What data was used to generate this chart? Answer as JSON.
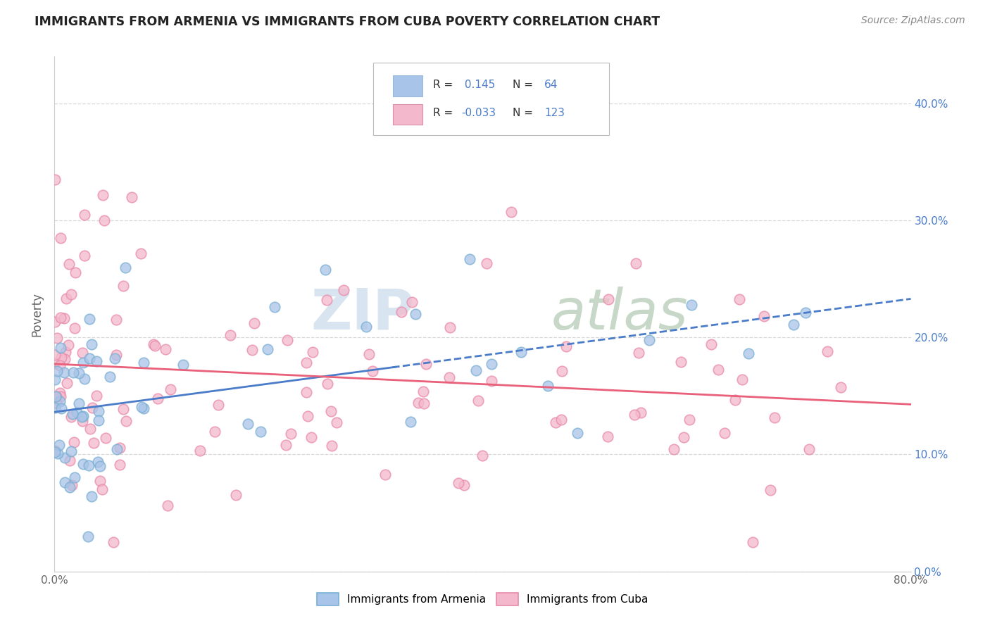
{
  "title": "IMMIGRANTS FROM ARMENIA VS IMMIGRANTS FROM CUBA POVERTY CORRELATION CHART",
  "source": "Source: ZipAtlas.com",
  "ylabel": "Poverty",
  "xlim": [
    0.0,
    0.8
  ],
  "ylim": [
    0.0,
    0.44
  ],
  "y_ticks": [
    0.0,
    0.1,
    0.2,
    0.3,
    0.4
  ],
  "y_tick_labels": [
    "0.0%",
    "10.0%",
    "20.0%",
    "30.0%",
    "40.0%"
  ],
  "x_ticks": [
    0.0,
    0.1,
    0.2,
    0.3,
    0.4,
    0.5,
    0.6,
    0.7,
    0.8
  ],
  "x_tick_labels": [
    "0.0%",
    "",
    "",
    "",
    "",
    "",
    "",
    "",
    "80.0%"
  ],
  "armenia_R": 0.145,
  "armenia_N": 64,
  "cuba_R": -0.033,
  "cuba_N": 123,
  "armenia_color": "#a8c4e8",
  "armenia_edge_color": "#7aafd4",
  "cuba_color": "#f4b8cc",
  "cuba_edge_color": "#e88aaa",
  "armenia_line_color": "#4a7cc9",
  "cuba_line_color": "#e8607a",
  "grid_color": "#d8d8d8",
  "text_color": "#333333",
  "source_color": "#888888",
  "value_color": "#4a7cc9",
  "watermark_zip_color": "#d8e4f0",
  "watermark_atlas_color": "#c8d8c8"
}
